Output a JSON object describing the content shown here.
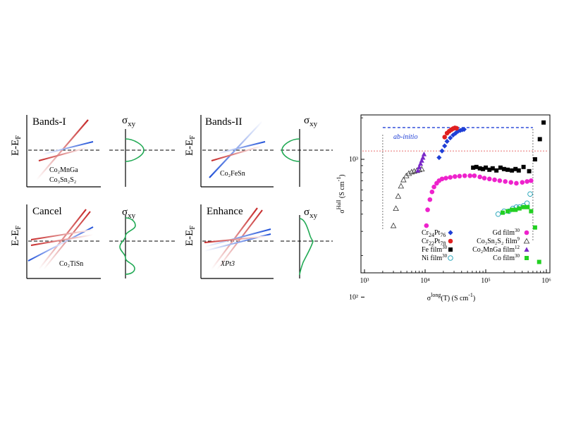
{
  "panels": {
    "bands_i": {
      "title": "Bands-I",
      "labels": [
        "Co₂MnGa",
        "Co₃Sn₂S₂"
      ]
    },
    "bands_ii": {
      "title": "Bands-II",
      "labels": [
        "Co₂FeSn"
      ]
    },
    "cancel": {
      "title": "Cancel",
      "labels": [
        "Co₂TiSn"
      ]
    },
    "enhance": {
      "title": "Enhance",
      "labels": [
        "XPt3"
      ]
    },
    "energy_label": "E-E",
    "energy_sub": "F",
    "sigma_label": "σ",
    "sigma_sub": "xy"
  },
  "chart_data": {
    "type": "scatter",
    "xlabel": "σlong(T) (S cm⁻¹)",
    "ylabel": "σHall (S cm⁻¹)",
    "xscale": "log",
    "yscale": "log",
    "xlim": [
      1000,
      1000000
    ],
    "ylim": [
      150,
      2100
    ],
    "x_ticks": [
      "10³",
      "10⁴",
      "10⁵",
      "10⁶"
    ],
    "y_ticks": [
      "10²",
      "10³"
    ],
    "annotation": "ab-initio",
    "reference_lines": {
      "ab_initio_y": 1700,
      "red_y": 1150,
      "vline_left_x": 2000,
      "vline_right_x": 600000
    },
    "series": [
      {
        "name": "Cr24Pt76",
        "marker": "diamond",
        "color": "#1f3fd6",
        "points": [
          [
            17000,
            1030
          ],
          [
            19000,
            1150
          ],
          [
            21000,
            1250
          ],
          [
            23000,
            1350
          ],
          [
            26000,
            1430
          ],
          [
            29000,
            1500
          ],
          [
            32000,
            1550
          ],
          [
            35000,
            1600
          ],
          [
            38000,
            1620
          ],
          [
            41000,
            1640
          ],
          [
            44000,
            1650
          ]
        ]
      },
      {
        "name": "Cr22Pt78",
        "marker": "circle",
        "color": "#e02020",
        "points": [
          [
            21000,
            1450
          ],
          [
            23000,
            1550
          ],
          [
            25000,
            1600
          ],
          [
            27000,
            1640
          ],
          [
            29000,
            1670
          ],
          [
            31000,
            1690
          ],
          [
            33000,
            1680
          ]
        ]
      },
      {
        "name": "Fe film",
        "marker": "square",
        "color": "#000000",
        "points": [
          [
            62000,
            870
          ],
          [
            70000,
            880
          ],
          [
            80000,
            860
          ],
          [
            90000,
            850
          ],
          [
            100000,
            870
          ],
          [
            115000,
            840
          ],
          [
            130000,
            860
          ],
          [
            150000,
            830
          ],
          [
            175000,
            870
          ],
          [
            200000,
            850
          ],
          [
            230000,
            840
          ],
          [
            270000,
            830
          ],
          [
            310000,
            850
          ],
          [
            350000,
            830
          ],
          [
            420000,
            880
          ],
          [
            520000,
            820
          ],
          [
            650000,
            1000
          ],
          [
            780000,
            1400
          ],
          [
            900000,
            1850
          ]
        ]
      },
      {
        "name": "Ni film",
        "marker": "circle-open",
        "color": "#1aa0b5",
        "points": [
          [
            160000,
            400
          ],
          [
            200000,
            420
          ],
          [
            240000,
            420
          ],
          [
            280000,
            440
          ],
          [
            320000,
            450
          ],
          [
            360000,
            450
          ],
          [
            420000,
            460
          ],
          [
            480000,
            480
          ],
          [
            540000,
            560
          ]
        ]
      },
      {
        "name": "Gd film",
        "marker": "circle",
        "color": "#ee22cc",
        "points": [
          [
            10500,
            330
          ],
          [
            11000,
            430
          ],
          [
            12000,
            510
          ],
          [
            13000,
            580
          ],
          [
            14000,
            630
          ],
          [
            15500,
            670
          ],
          [
            17000,
            700
          ],
          [
            19000,
            720
          ],
          [
            22000,
            730
          ],
          [
            26000,
            740
          ],
          [
            31000,
            750
          ],
          [
            37000,
            755
          ],
          [
            45000,
            760
          ],
          [
            55000,
            760
          ],
          [
            65000,
            760
          ],
          [
            80000,
            745
          ],
          [
            95000,
            730
          ],
          [
            115000,
            720
          ],
          [
            140000,
            710
          ],
          [
            170000,
            700
          ],
          [
            210000,
            690
          ],
          [
            260000,
            680
          ],
          [
            320000,
            670
          ],
          [
            400000,
            680
          ],
          [
            480000,
            690
          ],
          [
            560000,
            700
          ]
        ]
      },
      {
        "name": "Co3Sn2S2 film",
        "marker": "triangle-open",
        "color": "#333333",
        "points": [
          [
            3000,
            330
          ],
          [
            3300,
            440
          ],
          [
            3600,
            540
          ],
          [
            4000,
            640
          ],
          [
            4400,
            710
          ],
          [
            4900,
            760
          ],
          [
            5400,
            790
          ],
          [
            6000,
            810
          ],
          [
            6600,
            820
          ],
          [
            7300,
            830
          ],
          [
            8000,
            840
          ],
          [
            8800,
            850
          ]
        ]
      },
      {
        "name": "Co2MnGa film",
        "marker": "triangle",
        "color": "#7a28c8",
        "points": [
          [
            7600,
            830
          ],
          [
            8000,
            880
          ],
          [
            8400,
            930
          ],
          [
            8800,
            980
          ],
          [
            9200,
            1030
          ],
          [
            9600,
            1090
          ]
        ]
      },
      {
        "name": "Co film",
        "marker": "square",
        "color": "#22d022",
        "points": [
          [
            190000,
            410
          ],
          [
            230000,
            420
          ],
          [
            270000,
            430
          ],
          [
            310000,
            430
          ],
          [
            360000,
            440
          ],
          [
            420000,
            450
          ],
          [
            490000,
            450
          ],
          [
            560000,
            420
          ],
          [
            650000,
            320
          ],
          [
            760000,
            180
          ]
        ]
      }
    ],
    "legend": [
      {
        "label": "Cr",
        "a": "24",
        "b": "Pt",
        "c": "76",
        "marker": "diamond",
        "color": "#1f3fd6"
      },
      {
        "label": "Cr",
        "a": "22",
        "b": "Pt",
        "c": "78",
        "marker": "circle",
        "color": "#e02020"
      },
      {
        "label": "Fe film",
        "a": "",
        "b": "",
        "c": "",
        "sup": "30",
        "marker": "square",
        "color": "#000000"
      },
      {
        "label": "Ni film",
        "a": "",
        "b": "",
        "c": "",
        "sup": "30",
        "marker": "circle-open",
        "color": "#1aa0b5"
      },
      {
        "label": "Gd film",
        "sup": "30",
        "marker": "circle",
        "color": "#ee22cc"
      },
      {
        "label": "Co₃Sn₂S₂ film",
        "sup": "9",
        "marker": "triangle-open",
        "color": "#333333"
      },
      {
        "label": "Co₂MnGa film",
        "sup": "12",
        "marker": "triangle",
        "color": "#7a28c8"
      },
      {
        "label": "Co film",
        "sup": "30",
        "marker": "square",
        "color": "#22d022"
      }
    ]
  }
}
